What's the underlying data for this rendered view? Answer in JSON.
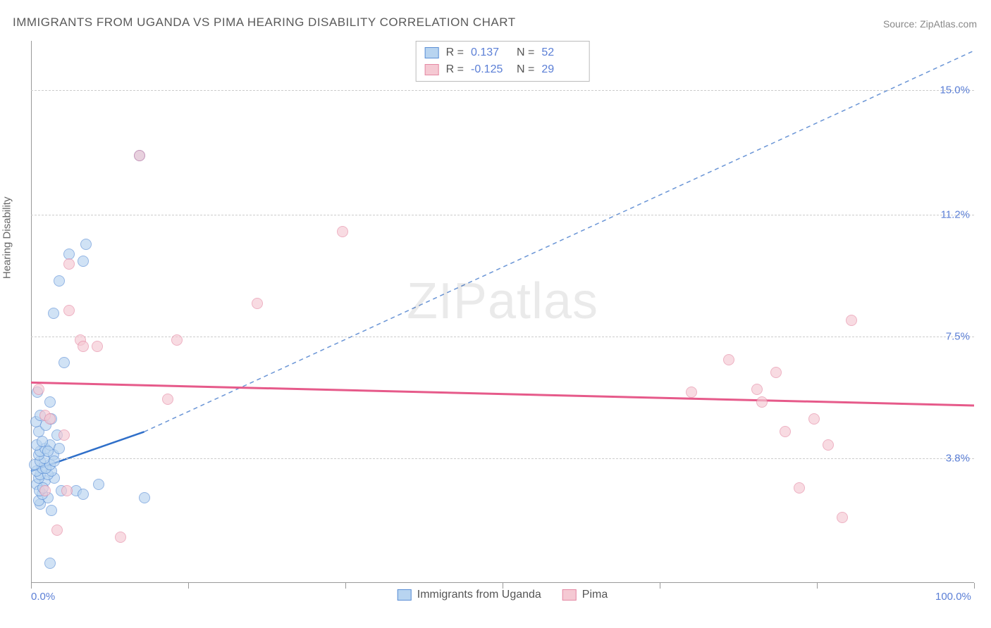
{
  "title": "IMMIGRANTS FROM UGANDA VS PIMA HEARING DISABILITY CORRELATION CHART",
  "source": "Source: ZipAtlas.com",
  "watermark_before": "ZIP",
  "watermark_after": "atlas",
  "chart": {
    "type": "scatter",
    "y_axis_label": "Hearing Disability",
    "xlim": [
      0,
      100
    ],
    "ylim": [
      0,
      16.5
    ],
    "x_ticks": [
      0,
      50,
      100
    ],
    "x_tick_labels": [
      "0.0%",
      "",
      "100.0%"
    ],
    "x_minor_ticks": [
      16.67,
      33.33,
      66.67,
      83.33
    ],
    "y_ticks": [
      3.8,
      7.5,
      11.2,
      15.0
    ],
    "y_tick_labels": [
      "3.8%",
      "7.5%",
      "11.2%",
      "15.0%"
    ],
    "background_color": "#ffffff",
    "grid_color": "#cccccc",
    "axis_color": "#999999",
    "tick_label_color": "#5b7fd6",
    "axis_label_color": "#666666",
    "series": [
      {
        "name": "Immigrants from Uganda",
        "fill": "#b8d4f0",
        "stroke": "#5b8fd6",
        "fill_opacity": 0.65,
        "marker_size": 16,
        "R": "0.137",
        "N": "52",
        "trend": {
          "x1": 0,
          "y1": 3.4,
          "x2": 12,
          "y2": 4.6,
          "color": "#2f6fc9",
          "width": 2.5,
          "dash": "none"
        },
        "extrapolation": {
          "x1": 12,
          "y1": 4.6,
          "x2": 100,
          "y2": 16.2,
          "color": "#6a95d6",
          "width": 1.5,
          "dash": "6,5"
        },
        "points": [
          [
            2.0,
            0.6
          ],
          [
            2.2,
            2.2
          ],
          [
            1.0,
            2.4
          ],
          [
            0.8,
            2.5
          ],
          [
            1.8,
            2.6
          ],
          [
            1.2,
            2.7
          ],
          [
            3.2,
            2.8
          ],
          [
            4.8,
            2.8
          ],
          [
            7.2,
            3.0
          ],
          [
            0.6,
            3.0
          ],
          [
            1.5,
            3.1
          ],
          [
            2.5,
            3.2
          ],
          [
            0.8,
            3.2
          ],
          [
            1.0,
            3.3
          ],
          [
            1.8,
            3.3
          ],
          [
            2.2,
            3.4
          ],
          [
            0.6,
            3.4
          ],
          [
            1.2,
            3.5
          ],
          [
            1.6,
            3.5
          ],
          [
            0.4,
            3.6
          ],
          [
            2.0,
            3.6
          ],
          [
            1.0,
            3.7
          ],
          [
            1.4,
            3.8
          ],
          [
            0.8,
            3.9
          ],
          [
            2.4,
            3.9
          ],
          [
            1.0,
            4.0
          ],
          [
            5.5,
            2.7
          ],
          [
            12.0,
            2.6
          ],
          [
            1.5,
            4.1
          ],
          [
            0.6,
            4.2
          ],
          [
            2.0,
            4.2
          ],
          [
            1.2,
            4.3
          ],
          [
            0.8,
            4.6
          ],
          [
            1.6,
            4.8
          ],
          [
            3.0,
            4.1
          ],
          [
            0.5,
            4.9
          ],
          [
            2.2,
            5.0
          ],
          [
            1.0,
            5.1
          ],
          [
            2.8,
            4.5
          ],
          [
            1.8,
            4.0
          ],
          [
            2.5,
            3.7
          ],
          [
            0.9,
            2.8
          ],
          [
            1.3,
            2.9
          ],
          [
            2.0,
            5.5
          ],
          [
            0.7,
            5.8
          ],
          [
            3.5,
            6.7
          ],
          [
            5.5,
            9.8
          ],
          [
            4.0,
            10.0
          ],
          [
            5.8,
            10.3
          ],
          [
            3.0,
            9.2
          ],
          [
            11.5,
            13.0
          ],
          [
            2.4,
            8.2
          ]
        ]
      },
      {
        "name": "Pima",
        "fill": "#f5c9d3",
        "stroke": "#e589a4",
        "fill_opacity": 0.65,
        "marker_size": 16,
        "R": "-0.125",
        "N": "29",
        "trend": {
          "x1": 0,
          "y1": 6.1,
          "x2": 100,
          "y2": 5.4,
          "color": "#e65a8a",
          "width": 3,
          "dash": "none"
        },
        "points": [
          [
            1.5,
            5.1
          ],
          [
            2.0,
            5.0
          ],
          [
            3.5,
            4.5
          ],
          [
            0.8,
            5.9
          ],
          [
            2.8,
            1.6
          ],
          [
            1.5,
            2.8
          ],
          [
            3.8,
            2.8
          ],
          [
            9.5,
            1.4
          ],
          [
            4.0,
            8.3
          ],
          [
            5.2,
            7.4
          ],
          [
            14.5,
            5.6
          ],
          [
            5.5,
            7.2
          ],
          [
            15.5,
            7.4
          ],
          [
            7.0,
            7.2
          ],
          [
            11.5,
            13.0
          ],
          [
            4.0,
            9.7
          ],
          [
            24.0,
            8.5
          ],
          [
            33.0,
            10.7
          ],
          [
            70.0,
            5.8
          ],
          [
            74.0,
            6.8
          ],
          [
            77.0,
            5.9
          ],
          [
            77.5,
            5.5
          ],
          [
            80.0,
            4.6
          ],
          [
            83.0,
            5.0
          ],
          [
            81.5,
            2.9
          ],
          [
            87.0,
            8.0
          ],
          [
            84.5,
            4.2
          ],
          [
            86.0,
            2.0
          ],
          [
            79.0,
            6.4
          ]
        ]
      }
    ]
  },
  "legend_bottom": [
    {
      "label": "Immigrants from Uganda",
      "fill": "#b8d4f0",
      "stroke": "#5b8fd6"
    },
    {
      "label": "Pima",
      "fill": "#f5c9d3",
      "stroke": "#e589a4"
    }
  ]
}
